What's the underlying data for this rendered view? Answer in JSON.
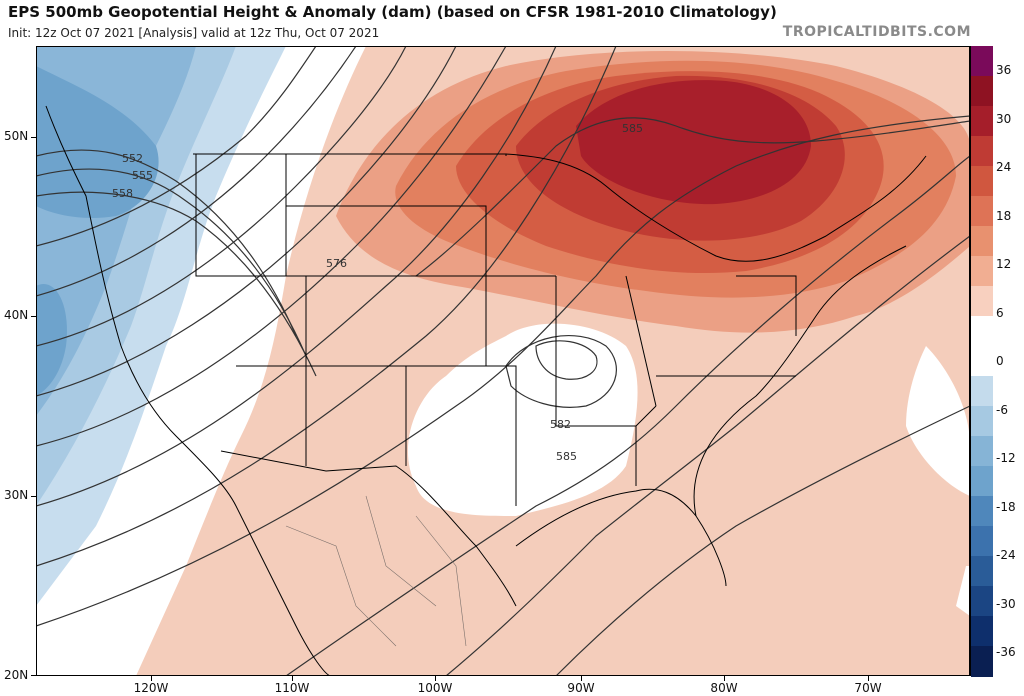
{
  "header": {
    "title": "EPS 500mb Geopotential Height & Anomaly (dam) (based on CFSR 1981-2010 Climatology)",
    "subtitle": "Init: 12z Oct 07 2021   [Analysis]   valid at 12z Thu, Oct 07 2021",
    "watermark": "TROPICALTIDBITS.COM"
  },
  "axes": {
    "lat_labels": [
      "50N",
      "40N",
      "30N",
      "20N"
    ],
    "lon_labels": [
      "120W",
      "110W",
      "100W",
      "90W",
      "80W",
      "70W"
    ]
  },
  "colorbar": {
    "labels": [
      "36",
      "30",
      "24",
      "18",
      "12",
      "6",
      "0",
      "-6",
      "-12",
      "-18",
      "-24",
      "-30",
      "-36"
    ],
    "colors": [
      "#7a0a5a",
      "#8e1222",
      "#a51e2a",
      "#bf3b34",
      "#d0573f",
      "#de7356",
      "#e8916f",
      "#f1ae92",
      "#f8d0bf",
      "#ffffff",
      "#ffffff",
      "#c4dbec",
      "#a6c9e2",
      "#86b4d6",
      "#6ea3cc",
      "#4f87bb",
      "#3c72ad",
      "#2a5c98",
      "#1b4583",
      "#0e2f6c",
      "#0a1f52"
    ]
  },
  "contours": {
    "labels": [
      "552",
      "555",
      "558",
      "576",
      "585",
      "582",
      "585"
    ]
  },
  "colors": {
    "positive_light": "#f6d2c2",
    "positive_mid": "#e8906f",
    "positive_strong": "#b82f2d",
    "negative_light": "#c7ddee",
    "negative_mid": "#8ab6d8",
    "negative_strong": "#4f87bb"
  }
}
